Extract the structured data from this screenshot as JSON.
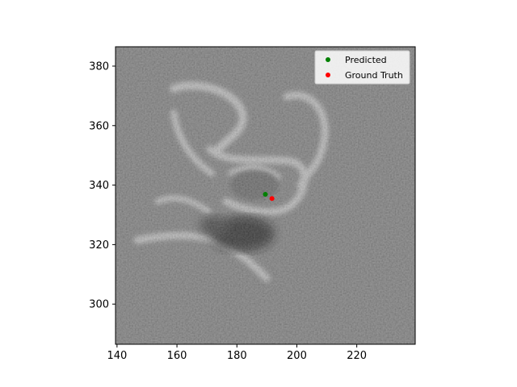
{
  "chart_data": {
    "type": "scatter",
    "background": "grayscale noisy microscopy image patch",
    "xlim": [
      139.5,
      239.5
    ],
    "ylim": [
      286.5,
      386.5
    ],
    "xticks": [
      140,
      160,
      180,
      200,
      220
    ],
    "yticks": [
      300,
      320,
      340,
      360,
      380
    ],
    "grid": false,
    "legend_placement": "top-right",
    "series": [
      {
        "name": "Predicted",
        "color": "#008000",
        "points": [
          {
            "x": 189.5,
            "y": 336.9
          }
        ]
      },
      {
        "name": "Ground Truth",
        "color": "#ff0000",
        "points": [
          {
            "x": 191.7,
            "y": 335.5
          }
        ]
      }
    ]
  }
}
